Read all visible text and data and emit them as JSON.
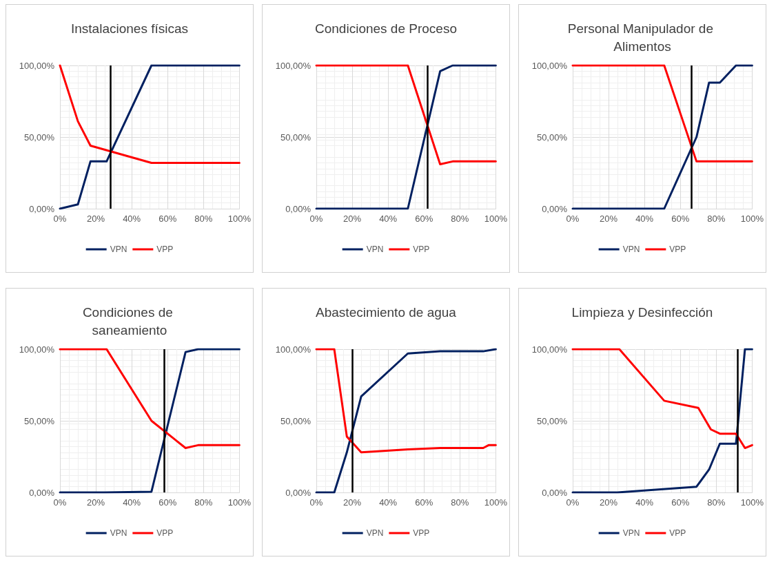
{
  "chart_data": [
    {
      "type": "line",
      "title": "Instalaciones físicas",
      "legend": "bottom",
      "grid": true,
      "marker": "none",
      "line_style": "solid",
      "xlim": [
        0,
        100
      ],
      "xticks": [
        {
          "value": 0,
          "label": "0%"
        },
        {
          "value": 20,
          "label": "20%"
        },
        {
          "value": 40,
          "label": "40%"
        },
        {
          "value": 60,
          "label": "60%"
        },
        {
          "value": 80,
          "label": "80%"
        },
        {
          "value": 100,
          "label": "100%"
        }
      ],
      "ylim": [
        0,
        100
      ],
      "yticks": [
        {
          "value": 0,
          "label": "0,00%"
        },
        {
          "value": 50,
          "label": "50,00%"
        },
        {
          "value": 100,
          "label": "100,00%"
        }
      ],
      "ref_lines": [
        {
          "axis": "x",
          "value": 28,
          "color": "#000000"
        }
      ],
      "series": [
        {
          "name": "VPN",
          "color": "#002060",
          "x": [
            0,
            10,
            17,
            26,
            51,
            100
          ],
          "values": [
            0,
            3,
            33,
            33,
            100,
            100
          ]
        },
        {
          "name": "VPP",
          "color": "#ff0000",
          "x": [
            0,
            10,
            17,
            51,
            100
          ],
          "values": [
            100,
            61,
            44,
            32,
            32
          ]
        }
      ]
    },
    {
      "type": "line",
      "title": "Condiciones de Proceso",
      "legend": "bottom",
      "grid": true,
      "marker": "none",
      "line_style": "solid",
      "xlim": [
        0,
        100
      ],
      "xticks": [
        {
          "value": 0,
          "label": "0%"
        },
        {
          "value": 20,
          "label": "20%"
        },
        {
          "value": 40,
          "label": "40%"
        },
        {
          "value": 60,
          "label": "60%"
        },
        {
          "value": 80,
          "label": "80%"
        },
        {
          "value": 100,
          "label": "100%"
        }
      ],
      "ylim": [
        0,
        100
      ],
      "yticks": [
        {
          "value": 0,
          "label": "0,00%"
        },
        {
          "value": 50,
          "label": "50,00%"
        },
        {
          "value": 100,
          "label": "100,00%"
        }
      ],
      "ref_lines": [
        {
          "axis": "x",
          "value": 62,
          "color": "#000000"
        }
      ],
      "series": [
        {
          "name": "VPN",
          "color": "#002060",
          "x": [
            0,
            51,
            69,
            76,
            100
          ],
          "values": [
            0,
            0,
            96,
            100,
            100
          ]
        },
        {
          "name": "VPP",
          "color": "#ff0000",
          "x": [
            0,
            51,
            69,
            76,
            100
          ],
          "values": [
            100,
            100,
            31,
            33,
            33
          ]
        }
      ]
    },
    {
      "type": "line",
      "title": "Personal Manipulador de Alimentos",
      "legend": "bottom",
      "grid": true,
      "marker": "none",
      "line_style": "solid",
      "xlim": [
        0,
        100
      ],
      "xticks": [
        {
          "value": 0,
          "label": "0%"
        },
        {
          "value": 20,
          "label": "20%"
        },
        {
          "value": 40,
          "label": "40%"
        },
        {
          "value": 60,
          "label": "60%"
        },
        {
          "value": 80,
          "label": "80%"
        },
        {
          "value": 100,
          "label": "100%"
        }
      ],
      "ylim": [
        0,
        100
      ],
      "yticks": [
        {
          "value": 0,
          "label": "0,00%"
        },
        {
          "value": 50,
          "label": "50,00%"
        },
        {
          "value": 100,
          "label": "100,00%"
        }
      ],
      "ref_lines": [
        {
          "axis": "x",
          "value": 66,
          "color": "#000000"
        }
      ],
      "series": [
        {
          "name": "VPN",
          "color": "#002060",
          "x": [
            0,
            51,
            69,
            76,
            82,
            91,
            100
          ],
          "values": [
            0,
            0,
            50,
            88,
            88,
            100,
            100
          ]
        },
        {
          "name": "VPP",
          "color": "#ff0000",
          "x": [
            0,
            51,
            69,
            100
          ],
          "values": [
            100,
            100,
            33,
            33
          ]
        }
      ]
    },
    {
      "type": "line",
      "title": "Condiciones de saneamiento",
      "legend": "bottom",
      "grid": true,
      "marker": "none",
      "line_style": "solid",
      "xlim": [
        0,
        100
      ],
      "xticks": [
        {
          "value": 0,
          "label": "0%"
        },
        {
          "value": 20,
          "label": "20%"
        },
        {
          "value": 40,
          "label": "40%"
        },
        {
          "value": 60,
          "label": "60%"
        },
        {
          "value": 80,
          "label": "80%"
        },
        {
          "value": 100,
          "label": "100%"
        }
      ],
      "ylim": [
        0,
        100
      ],
      "yticks": [
        {
          "value": 0,
          "label": "0,00%"
        },
        {
          "value": 50,
          "label": "50,00%"
        },
        {
          "value": 100,
          "label": "100,00%"
        }
      ],
      "ref_lines": [
        {
          "axis": "x",
          "value": 58,
          "color": "#000000"
        }
      ],
      "series": [
        {
          "name": "VPN",
          "color": "#002060",
          "x": [
            0,
            25,
            51,
            70,
            77,
            100
          ],
          "values": [
            0,
            0,
            0.5,
            98,
            100,
            100
          ]
        },
        {
          "name": "VPP",
          "color": "#ff0000",
          "x": [
            0,
            26,
            51,
            70,
            77,
            100
          ],
          "values": [
            100,
            100,
            50,
            31,
            33,
            33
          ]
        }
      ]
    },
    {
      "type": "line",
      "title": "Abastecimiento de agua",
      "legend": "bottom",
      "grid": true,
      "marker": "none",
      "line_style": "solid",
      "xlim": [
        0,
        100
      ],
      "xticks": [
        {
          "value": 0,
          "label": "0%"
        },
        {
          "value": 20,
          "label": "20%"
        },
        {
          "value": 40,
          "label": "40%"
        },
        {
          "value": 60,
          "label": "60%"
        },
        {
          "value": 80,
          "label": "80%"
        },
        {
          "value": 100,
          "label": "100%"
        }
      ],
      "ylim": [
        0,
        100
      ],
      "yticks": [
        {
          "value": 0,
          "label": "0,00%"
        },
        {
          "value": 50,
          "label": "50,00%"
        },
        {
          "value": 100,
          "label": "100,00%"
        }
      ],
      "ref_lines": [
        {
          "axis": "x",
          "value": 20,
          "color": "#000000"
        }
      ],
      "series": [
        {
          "name": "VPN",
          "color": "#002060",
          "x": [
            0,
            10,
            17,
            25,
            51,
            69,
            93,
            100
          ],
          "values": [
            0,
            0,
            28,
            67,
            97,
            98.5,
            98.5,
            100
          ]
        },
        {
          "name": "VPP",
          "color": "#ff0000",
          "x": [
            0,
            10,
            17,
            25,
            51,
            69,
            93,
            96,
            100
          ],
          "values": [
            100,
            100,
            39,
            28,
            30,
            31,
            31,
            33,
            33
          ]
        }
      ]
    },
    {
      "type": "line",
      "title": "Limpieza y Desinfección",
      "legend": "bottom",
      "grid": true,
      "marker": "none",
      "line_style": "solid",
      "xlim": [
        0,
        100
      ],
      "xticks": [
        {
          "value": 0,
          "label": "0%"
        },
        {
          "value": 20,
          "label": "20%"
        },
        {
          "value": 40,
          "label": "40%"
        },
        {
          "value": 60,
          "label": "60%"
        },
        {
          "value": 80,
          "label": "80%"
        },
        {
          "value": 100,
          "label": "100%"
        }
      ],
      "ylim": [
        0,
        100
      ],
      "yticks": [
        {
          "value": 0,
          "label": "0,00%"
        },
        {
          "value": 50,
          "label": "50,00%"
        },
        {
          "value": 100,
          "label": "100,00%"
        }
      ],
      "ref_lines": [
        {
          "axis": "x",
          "value": 92,
          "color": "#000000"
        }
      ],
      "series": [
        {
          "name": "VPN",
          "color": "#002060",
          "x": [
            0,
            25,
            69,
            76,
            82,
            91,
            96,
            100
          ],
          "values": [
            0,
            0,
            4,
            16,
            34,
            34,
            100,
            100
          ]
        },
        {
          "name": "VPP",
          "color": "#ff0000",
          "x": [
            0,
            26,
            51,
            70,
            77,
            82,
            91,
            96,
            100
          ],
          "values": [
            100,
            100,
            64,
            59,
            44,
            41,
            41,
            31,
            33
          ]
        }
      ]
    }
  ]
}
